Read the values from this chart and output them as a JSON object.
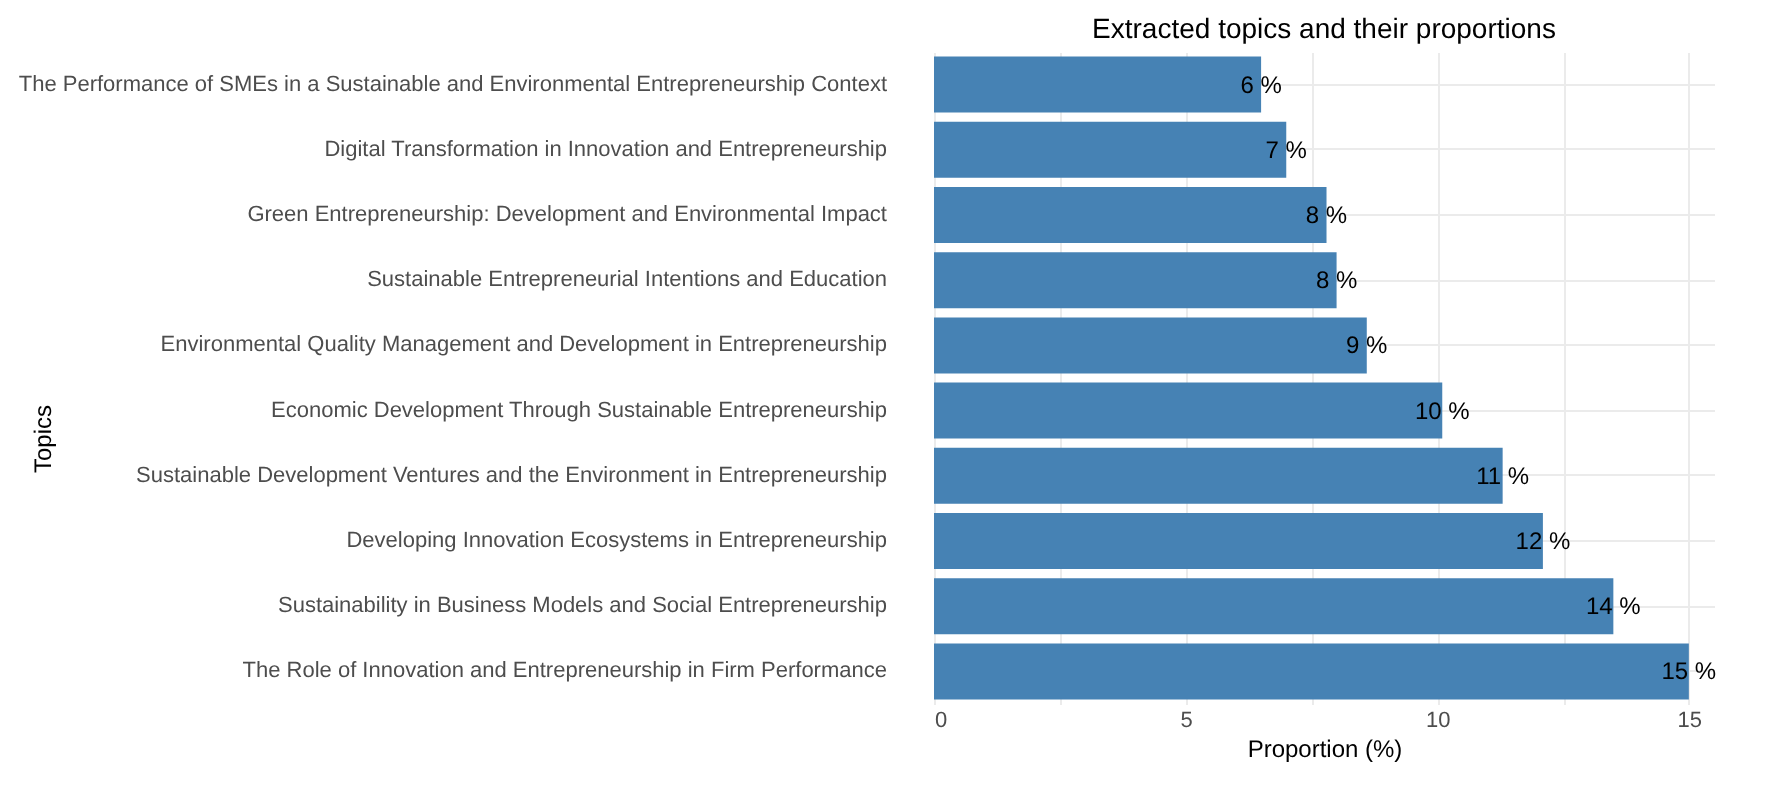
{
  "chart_data": {
    "type": "bar",
    "orientation": "horizontal",
    "title": "Extracted topics and their proportions",
    "xlabel": "Proportion (%)",
    "ylabel": "Topics",
    "categories": [
      "The Performance of SMEs in a Sustainable and Environmental Entrepreneurship Context",
      "Digital Transformation in Innovation and Entrepreneurship",
      "Green Entrepreneurship: Development and Environmental Impact",
      "Sustainable Entrepreneurial Intentions and Education",
      "Environmental Quality Management and Development in Entrepreneurship",
      "Economic Development Through Sustainable Entrepreneurship",
      "Sustainable Development Ventures and the Environment in Entrepreneurship",
      "Developing Innovation Ecosystems in Entrepreneurship",
      "Sustainability in Business Models and Social Entrepreneurship",
      "The Role of Innovation and Entrepreneurship in Firm Performance"
    ],
    "values": [
      6.5,
      7.0,
      7.8,
      8.0,
      8.6,
      10.1,
      11.3,
      12.1,
      13.5,
      15.0
    ],
    "value_labels": [
      "6 %",
      "7 %",
      "8 %",
      "8 %",
      "9 %",
      "10 %",
      "11 %",
      "12 %",
      "14 %",
      "15 %"
    ],
    "color": "#4682b4",
    "xlim": [
      0,
      15.5
    ],
    "xticks": [
      0,
      {
        "value": 2.5,
        "label": null
      },
      5,
      {
        "value": 7.5,
        "label": null
      },
      10,
      {
        "value": 12.5,
        "label": null
      },
      15
    ],
    "grid": true
  }
}
